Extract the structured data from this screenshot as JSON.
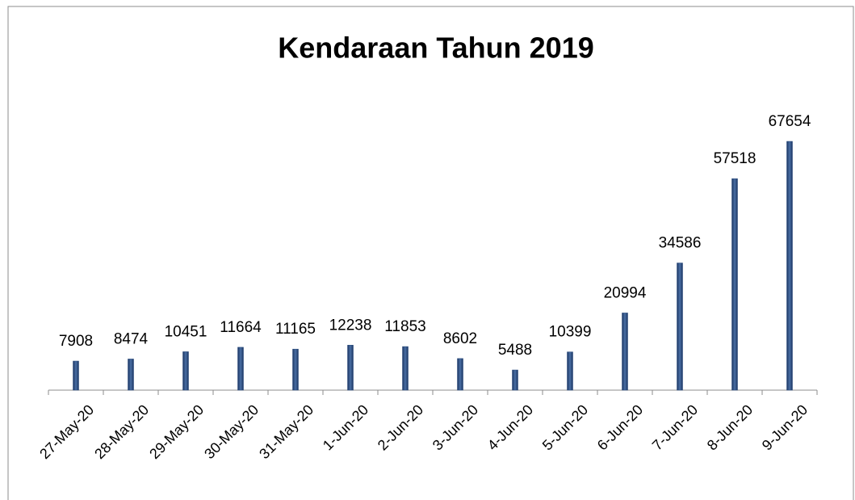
{
  "chart_data": {
    "type": "bar",
    "title": "Kendaraan Tahun 2019",
    "categories": [
      "27-May-20",
      "28-May-20",
      "29-May-20",
      "30-May-20",
      "31-May-20",
      "1-Jun-20",
      "2-Jun-20",
      "3-Jun-20",
      "4-Jun-20",
      "5-Jun-20",
      "6-Jun-20",
      "7-Jun-20",
      "8-Jun-20",
      "9-Jun-20"
    ],
    "values": [
      7908,
      8474,
      10451,
      11664,
      11165,
      12238,
      11853,
      8602,
      5488,
      10399,
      20994,
      34586,
      57518,
      67654
    ],
    "color": "#24477a"
  }
}
